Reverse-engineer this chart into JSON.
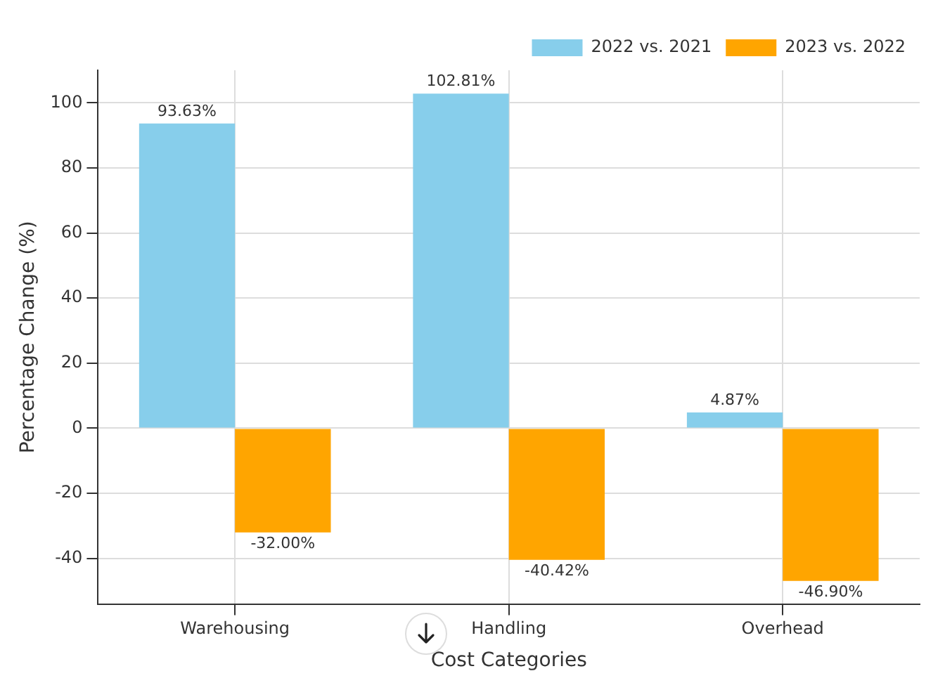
{
  "chart_data": {
    "type": "bar",
    "xlabel": "Cost Categories",
    "ylabel": "Percentage Change (%)",
    "categories": [
      "Warehousing",
      "Handling",
      "Overhead"
    ],
    "series": [
      {
        "name": "2022 vs. 2021",
        "color": "#87ceeb",
        "values": [
          93.63,
          102.81,
          4.87
        ],
        "value_labels": [
          "93.63%",
          "102.81%",
          "4.87%"
        ]
      },
      {
        "name": "2023 vs. 2022",
        "color": "#ffa500",
        "values": [
          -32.0,
          -40.42,
          -46.9
        ],
        "value_labels": [
          "-32.00%",
          "-40.42%",
          "-46.90%"
        ]
      }
    ],
    "ylim": [
      -54,
      110
    ],
    "yticks": [
      -40,
      -20,
      0,
      20,
      40,
      60,
      80,
      100
    ],
    "grid": true,
    "legend": "top right"
  }
}
